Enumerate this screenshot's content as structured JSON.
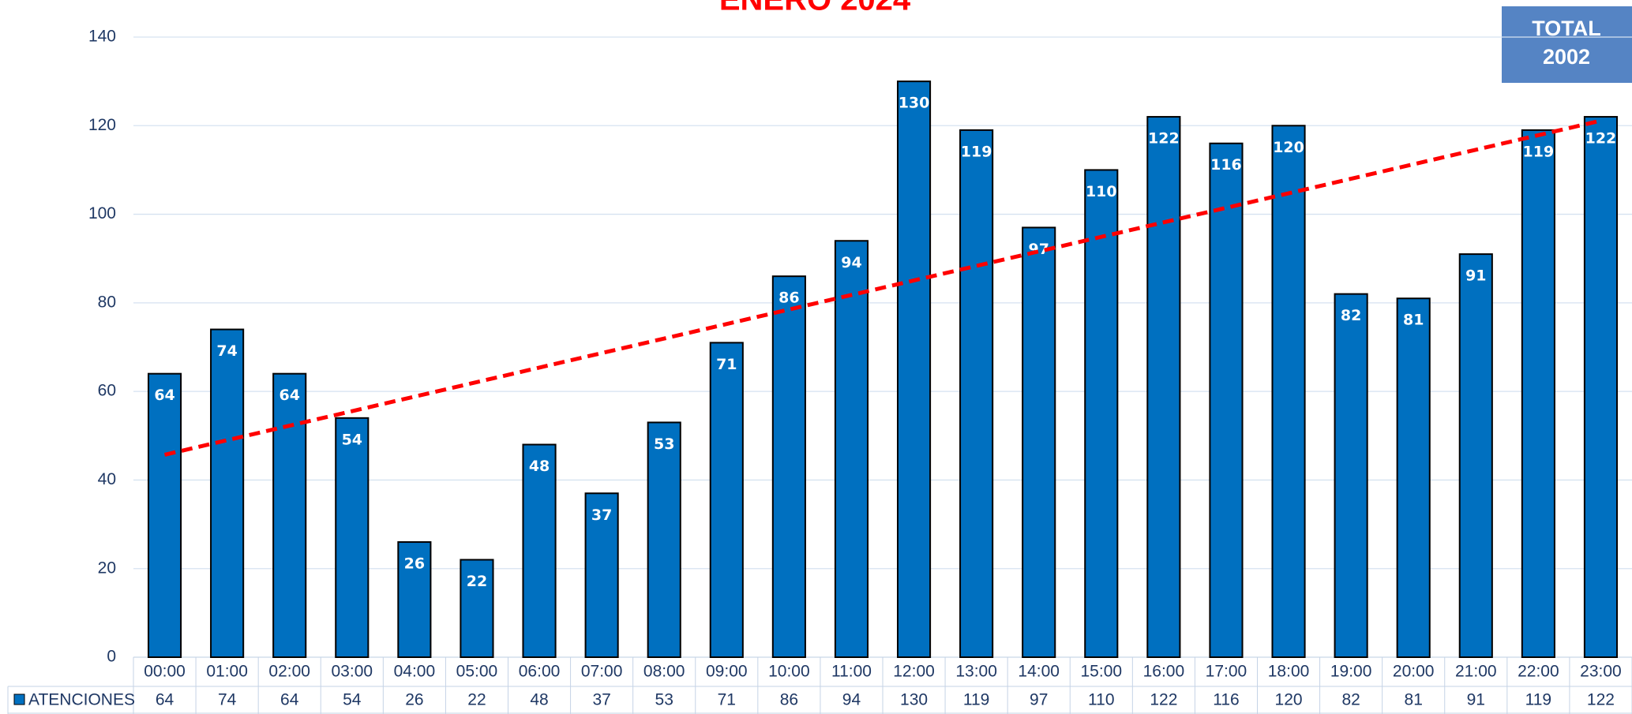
{
  "chart_data": {
    "type": "bar",
    "title": "ENERO 2024",
    "categories": [
      "00:00",
      "01:00",
      "02:00",
      "03:00",
      "04:00",
      "05:00",
      "06:00",
      "07:00",
      "08:00",
      "09:00",
      "10:00",
      "11:00",
      "12:00",
      "13:00",
      "14:00",
      "15:00",
      "16:00",
      "17:00",
      "18:00",
      "19:00",
      "20:00",
      "21:00",
      "22:00",
      "23:00"
    ],
    "series": [
      {
        "name": "ATENCIONES",
        "color": "#0070c0",
        "values": [
          64,
          74,
          64,
          54,
          26,
          22,
          48,
          37,
          53,
          71,
          86,
          94,
          130,
          119,
          97,
          110,
          122,
          116,
          120,
          82,
          81,
          91,
          119,
          122
        ]
      }
    ],
    "ylim": [
      0,
      140
    ],
    "yticks": [
      0,
      20,
      40,
      60,
      80,
      100,
      120,
      140
    ],
    "grid": true,
    "trendline": {
      "type": "linear",
      "color": "#ff0000"
    },
    "total_label": "TOTAL",
    "total": "2002"
  }
}
